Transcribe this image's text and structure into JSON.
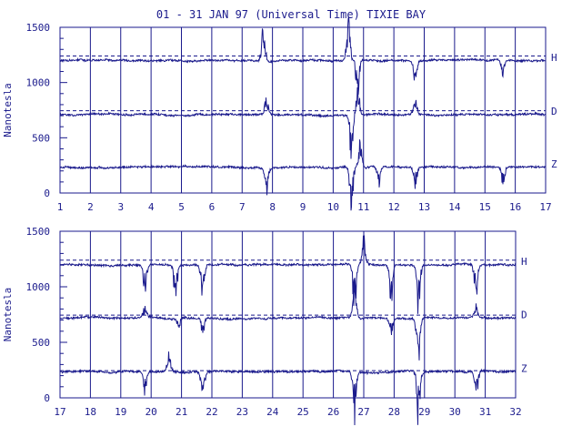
{
  "chart_data": {
    "title": "01 - 31 JAN 97 (Universal Time) TIXIE BAY",
    "panels": [
      {
        "type": "line",
        "xlabel": "",
        "ylabel": "Nanotesla",
        "xlim": [
          1,
          17
        ],
        "ylim": [
          0,
          1500
        ],
        "x_ticks": [
          "1",
          "2",
          "3",
          "4",
          "5",
          "6",
          "7",
          "8",
          "9",
          "10",
          "11",
          "12",
          "13",
          "14",
          "15",
          "16",
          "17"
        ],
        "y_ticks": [
          "0",
          "500",
          "1000",
          "1500"
        ],
        "grid": true,
        "series": [
          {
            "name": "H",
            "baseline": 1200,
            "reference": 1240,
            "events": [
              {
                "x": 7.7,
                "amp": 260
              },
              {
                "x": 10.5,
                "amp": 320
              },
              {
                "x": 10.8,
                "amp": -260
              },
              {
                "x": 12.7,
                "amp": -180
              },
              {
                "x": 15.6,
                "amp": -110
              }
            ]
          },
          {
            "name": "D",
            "baseline": 710,
            "reference": 745,
            "events": [
              {
                "x": 7.8,
                "amp": 120
              },
              {
                "x": 10.6,
                "amp": -300
              },
              {
                "x": 10.8,
                "amp": 240
              },
              {
                "x": 12.7,
                "amp": 110
              }
            ]
          },
          {
            "name": "Z",
            "baseline": 235,
            "reference": null,
            "events": [
              {
                "x": 7.8,
                "amp": -190
              },
              {
                "x": 10.6,
                "amp": -330
              },
              {
                "x": 10.9,
                "amp": 200
              },
              {
                "x": 11.5,
                "amp": -150
              },
              {
                "x": 12.7,
                "amp": -160
              },
              {
                "x": 15.6,
                "amp": -120
              }
            ]
          }
        ]
      },
      {
        "type": "line",
        "xlabel": "",
        "ylabel": "Nanotesla",
        "xlim": [
          17,
          32
        ],
        "ylim": [
          0,
          1500
        ],
        "x_ticks": [
          "17",
          "18",
          "19",
          "20",
          "21",
          "22",
          "23",
          "24",
          "25",
          "26",
          "27",
          "28",
          "29",
          "30",
          "31",
          "32"
        ],
        "y_ticks": [
          "0",
          "500",
          "1000",
          "1500"
        ],
        "grid": true,
        "series": [
          {
            "name": "H",
            "baseline": 1200,
            "reference": 1240,
            "events": [
              {
                "x": 19.8,
                "amp": -250
              },
              {
                "x": 20.8,
                "amp": -280
              },
              {
                "x": 21.7,
                "amp": -300
              },
              {
                "x": 26.7,
                "amp": -330
              },
              {
                "x": 27.0,
                "amp": 200
              },
              {
                "x": 27.9,
                "amp": -260
              },
              {
                "x": 28.8,
                "amp": -320
              },
              {
                "x": 30.7,
                "amp": -300
              }
            ]
          },
          {
            "name": "D",
            "baseline": 720,
            "reference": 745,
            "events": [
              {
                "x": 19.8,
                "amp": 90
              },
              {
                "x": 20.9,
                "amp": -80
              },
              {
                "x": 21.7,
                "amp": -120
              },
              {
                "x": 26.7,
                "amp": 300
              },
              {
                "x": 27.9,
                "amp": -110
              },
              {
                "x": 28.8,
                "amp": -330
              },
              {
                "x": 30.7,
                "amp": 100
              }
            ]
          },
          {
            "name": "Z",
            "baseline": 235,
            "reference": 245,
            "events": [
              {
                "x": 19.8,
                "amp": -150
              },
              {
                "x": 20.6,
                "amp": 170
              },
              {
                "x": 21.7,
                "amp": -240
              },
              {
                "x": 26.7,
                "amp": -340
              },
              {
                "x": 28.8,
                "amp": -360
              },
              {
                "x": 30.7,
                "amp": -200
              }
            ]
          }
        ]
      }
    ]
  }
}
